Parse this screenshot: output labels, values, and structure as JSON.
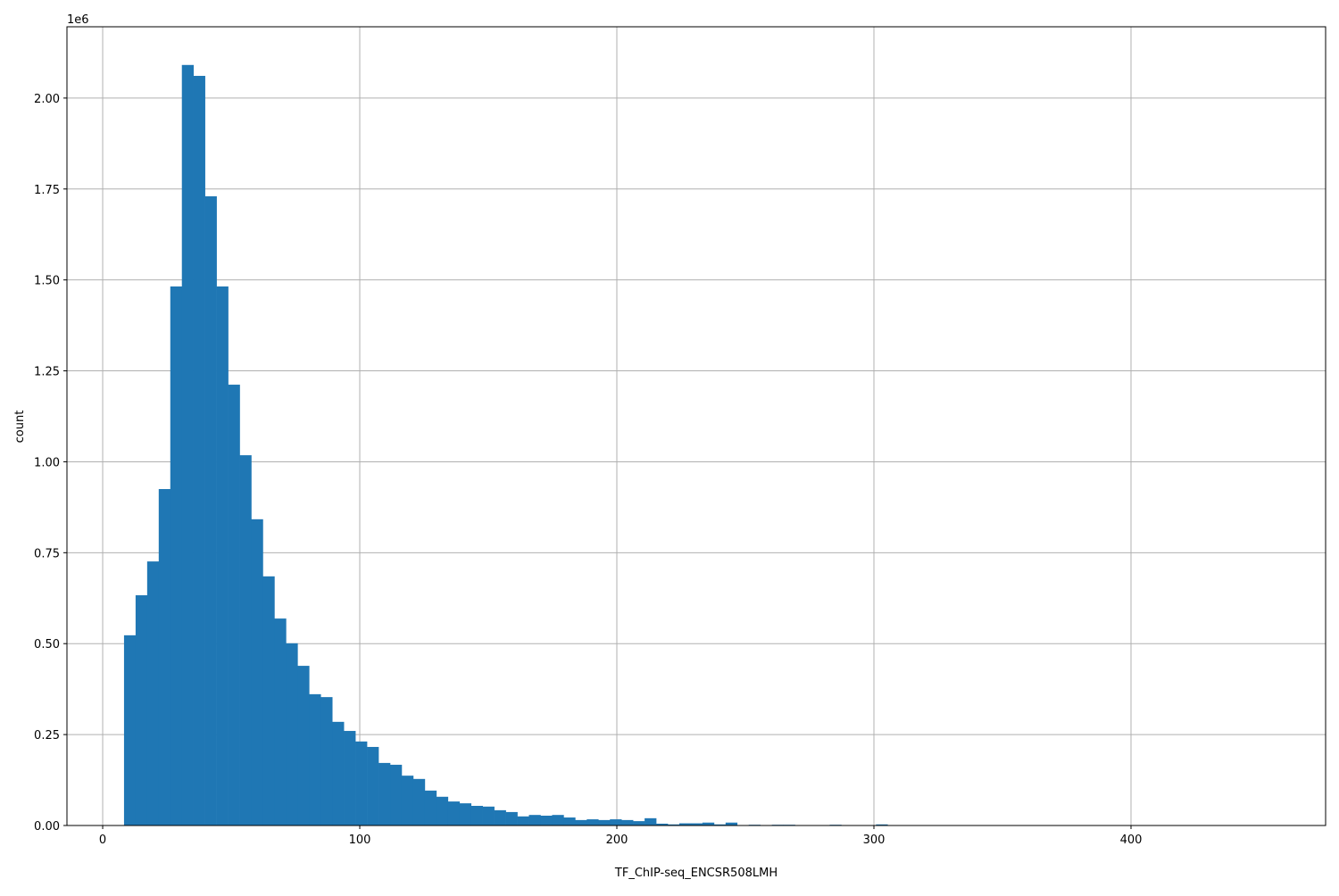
{
  "chart_data": {
    "type": "bar",
    "title": "",
    "xlabel": "TF_ChIP-seq_ENCSR508LMH",
    "ylabel": "count",
    "y_offset_label": "1e6",
    "xlim": [
      -13.9,
      475.7
    ],
    "ylim": [
      0,
      2.196
    ],
    "y_unit_multiplier": 1000000,
    "grid": true,
    "bar_color": "#1f77b4",
    "bin_start": 8.3,
    "bin_width": 4.5,
    "values": [
      0.523,
      0.633,
      0.726,
      0.925,
      1.482,
      2.091,
      2.061,
      1.73,
      1.482,
      1.212,
      1.018,
      0.842,
      0.685,
      0.569,
      0.501,
      0.439,
      0.361,
      0.353,
      0.285,
      0.26,
      0.231,
      0.216,
      0.172,
      0.167,
      0.137,
      0.128,
      0.096,
      0.079,
      0.066,
      0.061,
      0.054,
      0.052,
      0.042,
      0.037,
      0.025,
      0.029,
      0.027,
      0.029,
      0.022,
      0.015,
      0.017,
      0.015,
      0.017,
      0.015,
      0.012,
      0.02,
      0.005,
      0.003,
      0.006,
      0.006,
      0.008,
      0.003,
      0.008,
      0.001,
      0.002,
      0.001,
      0.002,
      0.002,
      0.001,
      0.001,
      0.001,
      0.002,
      0.001,
      0.001,
      0.001,
      0.003,
      0.001,
      0.001,
      0.001,
      0.001,
      0,
      0,
      0,
      0,
      0,
      0,
      0,
      0,
      0,
      0,
      0,
      0,
      0,
      0,
      0,
      0,
      0,
      0,
      0,
      0,
      0,
      0,
      0,
      0,
      0,
      0,
      0,
      0,
      0,
      0.0005
    ],
    "xticks": [
      0,
      100,
      200,
      300,
      400
    ],
    "xtick_labels": [
      "0",
      "100",
      "200",
      "300",
      "400"
    ],
    "yticks": [
      0,
      0.25,
      0.5,
      0.75,
      1.0,
      1.25,
      1.5,
      1.75,
      2.0
    ],
    "ytick_labels": [
      "0.00",
      "0.25",
      "0.50",
      "0.75",
      "1.00",
      "1.25",
      "1.50",
      "1.75",
      "2.00"
    ]
  }
}
